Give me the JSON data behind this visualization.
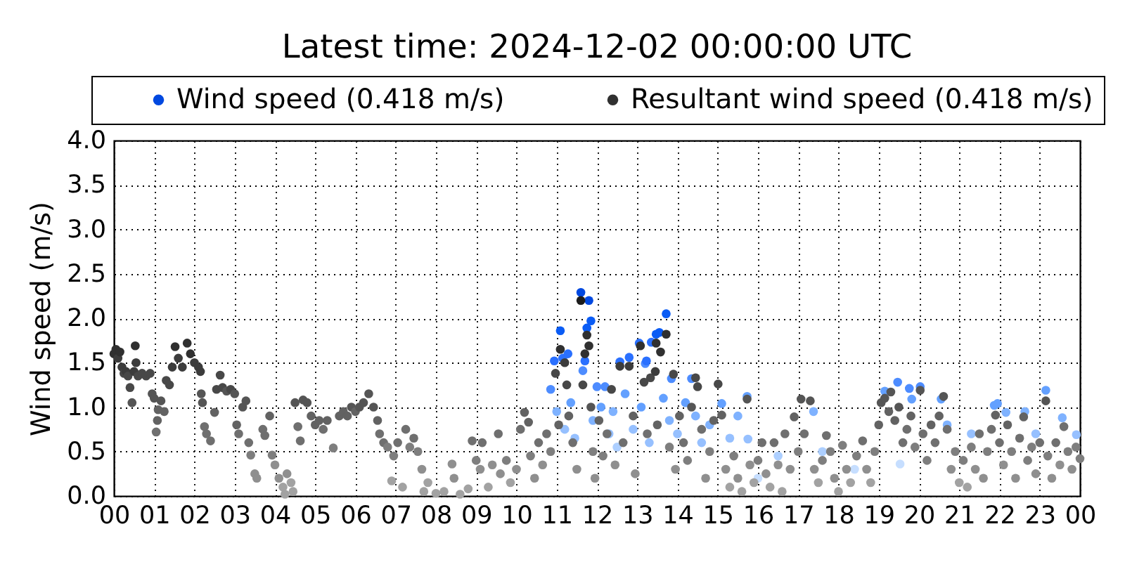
{
  "chart_data": {
    "type": "scatter",
    "title": "Latest time: 2024-12-02 00:00:00 UTC",
    "ylabel": "Wind speed (m/s)",
    "xlim": [
      0,
      24
    ],
    "ylim": [
      0,
      4
    ],
    "xticks": [
      {
        "value": 0,
        "label": "00"
      },
      {
        "value": 1,
        "label": "01"
      },
      {
        "value": 2,
        "label": "02"
      },
      {
        "value": 3,
        "label": "03"
      },
      {
        "value": 4,
        "label": "04"
      },
      {
        "value": 5,
        "label": "05"
      },
      {
        "value": 6,
        "label": "06"
      },
      {
        "value": 7,
        "label": "07"
      },
      {
        "value": 8,
        "label": "08"
      },
      {
        "value": 9,
        "label": "09"
      },
      10,
      11,
      12,
      13,
      14,
      15,
      16,
      17,
      18,
      19,
      20,
      21,
      22,
      23,
      {
        "value": 24,
        "label": "00"
      }
    ],
    "yticks": [
      {
        "value": 0,
        "label": "0.0"
      },
      0.5,
      {
        "value": 1,
        "label": "1.0"
      },
      1.5,
      {
        "value": 2,
        "label": "2.0"
      },
      2.5,
      {
        "value": 3,
        "label": "3.0"
      },
      3.5,
      {
        "value": 4,
        "label": "4.0"
      }
    ],
    "grid": true,
    "legend": "top",
    "marker": "circle",
    "series": [
      {
        "name": "Wind speed (0.418 m/s)",
        "color": "#0048e0",
        "x": [
          10.85,
          10.94,
          11,
          11.09,
          11.15,
          11.2,
          11.28,
          11.35,
          11.45,
          11.6,
          11.65,
          11.7,
          11.75,
          11.8,
          11.85,
          11.9,
          12,
          12.1,
          12.2,
          12.3,
          12.4,
          12.5,
          12.57,
          12.7,
          12.8,
          12.9,
          13.05,
          13.1,
          13.2,
          13.23,
          13.3,
          13.35,
          13.47,
          13.55,
          13.65,
          13.72,
          13.8,
          13.85,
          14,
          14.2,
          14.35,
          14.45,
          14.6,
          14.8,
          15.1,
          15.3,
          15.5,
          15.73,
          15.75,
          16,
          16.5,
          17.38,
          17.6,
          18.4,
          19.15,
          19.47,
          19.53,
          19.76,
          19.82,
          20.03,
          20.55,
          20.7,
          21.3,
          21.87,
          21.95,
          22.16,
          22.63,
          22.9,
          23.15,
          23.56,
          23.91
        ],
        "values": [
          1.2,
          1.52,
          0.95,
          1.86,
          1.55,
          0.75,
          1.6,
          1.05,
          0.65,
          2.29,
          1.41,
          1.52,
          1.89,
          2.2,
          1.97,
          0.85,
          1.23,
          1.0,
          1.23,
          0.7,
          0.95,
          0.55,
          1.51,
          1.15,
          1.56,
          0.75,
          1.72,
          1.0,
          1.49,
          1.52,
          0.6,
          1.73,
          1.82,
          1.84,
          1.1,
          2.05,
          0.85,
          1.32,
          0.7,
          1.05,
          1.32,
          0.9,
          0.6,
          0.8,
          1.04,
          0.65,
          0.9,
          1.12,
          0.64,
          0.2,
          0.45,
          0.95,
          0.5,
          0.3,
          1.18,
          1.28,
          0.36,
          1.21,
          1.09,
          1.23,
          1.09,
          0.8,
          0.7,
          1.02,
          1.04,
          0.94,
          0.95,
          0.7,
          1.19,
          0.88,
          0.69
        ],
        "colors": [
          "#4d8cff",
          "#2a70ff",
          "#7fb2ff",
          "#0a5cf5",
          "#2a70ff",
          "#96c0ff",
          "#2a70ff",
          "#63a0ff",
          "#96c0ff",
          "#0048e0",
          "#4d8cff",
          "#2a70ff",
          "#0a5cf5",
          "#0048e0",
          "#0a5cf5",
          "#7fb2ff",
          "#4d8cff",
          "#63a0ff",
          "#4d8cff",
          "#96c0ff",
          "#7fb2ff",
          "#adcfff",
          "#2a70ff",
          "#63a0ff",
          "#2a70ff",
          "#96c0ff",
          "#2a70ff",
          "#63a0ff",
          "#4d8cff",
          "#2a70ff",
          "#96c0ff",
          "#2a70ff",
          "#0a5cf5",
          "#0a5cf5",
          "#63a0ff",
          "#0a5cf5",
          "#7fb2ff",
          "#4d8cff",
          "#96c0ff",
          "#63a0ff",
          "#4d8cff",
          "#7fb2ff",
          "#96c0ff",
          "#7fb2ff",
          "#63a0ff",
          "#96c0ff",
          "#7fb2ff",
          "#63a0ff",
          "#96c0ff",
          "#c6deff",
          "#adcfff",
          "#7fb2ff",
          "#adcfff",
          "#c6deff",
          "#63a0ff",
          "#4d8cff",
          "#c6deff",
          "#4d8cff",
          "#63a0ff",
          "#4d8cff",
          "#63a0ff",
          "#7fb2ff",
          "#96c0ff",
          "#63a0ff",
          "#63a0ff",
          "#7fb2ff",
          "#7fb2ff",
          "#96c0ff",
          "#63a0ff",
          "#7fb2ff",
          "#96c0ff"
        ]
      },
      {
        "name": "Resultant wind speed (0.418 m/s)",
        "color": "#303030",
        "x": [
          0,
          0.05,
          0.1,
          0.15,
          0.2,
          0.25,
          0.3,
          0.35,
          0.4,
          0.45,
          0.5,
          0.53,
          0.55,
          0.6,
          0.7,
          0.8,
          0.9,
          0.95,
          1,
          1.05,
          1.08,
          1.1,
          1.17,
          1.25,
          1.3,
          1.38,
          1.45,
          1.52,
          1.6,
          1.7,
          1.82,
          1.9,
          2,
          2.1,
          2.15,
          2.17,
          2.2,
          2.25,
          2.3,
          2.4,
          2.5,
          2.55,
          2.64,
          2.7,
          2.8,
          2.9,
          3,
          3.05,
          3.1,
          3.2,
          3.28,
          3.35,
          3.4,
          3.5,
          3.55,
          3.7,
          3.75,
          3.87,
          3.93,
          4,
          4.1,
          4.2,
          4.25,
          4.3,
          4.4,
          4.45,
          4.5,
          4.57,
          4.63,
          4.7,
          4.8,
          4.9,
          5,
          5.1,
          5.2,
          5.3,
          5.45,
          5.6,
          5.7,
          5.8,
          5.9,
          6,
          6.1,
          6.2,
          6.33,
          6.45,
          6.55,
          6.6,
          6.7,
          6.8,
          6.9,
          6.95,
          7.05,
          7.17,
          7.25,
          7.35,
          7.45,
          7.55,
          7.65,
          7.7,
          7.8,
          8,
          8.2,
          8.4,
          8.45,
          8.6,
          8.8,
          8.9,
          9,
          9.1,
          9.15,
          9.3,
          9.4,
          9.55,
          9.6,
          9.75,
          9.85,
          10,
          10.1,
          10.2,
          10.3,
          10.35,
          10.45,
          10.55,
          10.65,
          10.75,
          10.85,
          10.97,
          11.05,
          11.09,
          11.2,
          11.25,
          11.3,
          11.4,
          11.5,
          11.6,
          11.65,
          11.7,
          11.75,
          11.8,
          11.85,
          11.9,
          11.95,
          12.05,
          12.15,
          12.25,
          12.36,
          12.45,
          12.57,
          12.65,
          12.8,
          12.9,
          12.95,
          13.08,
          13.17,
          13.25,
          13.33,
          13.45,
          13.47,
          13.5,
          13.58,
          13.72,
          13.8,
          13.9,
          13.95,
          14.05,
          14.15,
          14.25,
          14.35,
          14.45,
          14.5,
          14.6,
          14.7,
          14.8,
          14.9,
          15.01,
          15.1,
          15.2,
          15.3,
          15.4,
          15.5,
          15.6,
          15.73,
          15.8,
          15.9,
          16,
          16.1,
          16.2,
          16.3,
          16.4,
          16.5,
          16.6,
          16.67,
          16.8,
          16.9,
          17,
          17.07,
          17.15,
          17.3,
          17.4,
          17.5,
          17.6,
          17.7,
          17.8,
          17.9,
          18,
          18.1,
          18.2,
          18.3,
          18.45,
          18.6,
          18.7,
          18.8,
          18.9,
          19,
          19.06,
          19.15,
          19.25,
          19.3,
          19.4,
          19.5,
          19.6,
          19.7,
          19.8,
          19.9,
          20.03,
          20.1,
          20.2,
          20.3,
          20.4,
          20.5,
          20.61,
          20.7,
          20.8,
          20.9,
          21,
          21.1,
          21.2,
          21.3,
          21.4,
          21.5,
          21.6,
          21.7,
          21.8,
          21.9,
          22,
          22.1,
          22.2,
          22.3,
          22.4,
          22.5,
          22.6,
          22.7,
          22.8,
          22.9,
          23,
          23.15,
          23.2,
          23.3,
          23.4,
          23.5,
          23.6,
          23.7,
          23.8,
          23.9,
          24
        ],
        "values": [
          1.6,
          1.65,
          1.55,
          1.62,
          1.45,
          1.38,
          1.4,
          1.35,
          1.22,
          1.05,
          1.4,
          1.69,
          1.5,
          1.35,
          1.38,
          1.35,
          1.38,
          1.15,
          1.1,
          0.72,
          0.85,
          0.97,
          1.07,
          0.95,
          1.3,
          1.25,
          1.45,
          1.68,
          1.55,
          1.45,
          1.72,
          1.6,
          1.5,
          1.45,
          1.4,
          1.15,
          1.05,
          0.78,
          0.7,
          0.62,
          0.94,
          1.2,
          1.36,
          1.22,
          1.18,
          1.2,
          1.15,
          0.8,
          0.7,
          1.0,
          1.07,
          0.6,
          0.46,
          0.25,
          0.2,
          0.75,
          0.68,
          0.9,
          0.46,
          0.35,
          0.2,
          0.1,
          0.02,
          0.25,
          0.15,
          0.05,
          1.05,
          0.78,
          0.62,
          1.08,
          1.05,
          0.9,
          0.8,
          0.85,
          0.75,
          0.85,
          0.54,
          0.9,
          0.95,
          0.9,
          1.0,
          0.95,
          1.0,
          1.05,
          1.15,
          1.0,
          0.85,
          0.7,
          0.6,
          0.55,
          0.17,
          0.45,
          0.6,
          0.1,
          0.75,
          0.55,
          0.65,
          0.5,
          0.3,
          0.05,
          0.15,
          0.03,
          0.05,
          0.36,
          0.2,
          0.02,
          0.08,
          0.62,
          0.4,
          0.3,
          0.6,
          0.1,
          0.35,
          0.7,
          0.25,
          0.4,
          0.15,
          0.3,
          0.75,
          0.94,
          0.83,
          0.45,
          0.2,
          0.6,
          0.35,
          0.7,
          0.5,
          1.38,
          0.8,
          1.65,
          1.5,
          1.25,
          0.9,
          0.6,
          0.3,
          2.2,
          1.25,
          1.6,
          1.81,
          1.69,
          1.0,
          0.5,
          0.2,
          0.85,
          0.45,
          0.7,
          1.2,
          0.35,
          1.46,
          0.6,
          1.46,
          0.9,
          0.25,
          1.69,
          1.28,
          0.7,
          1.33,
          1.4,
          1.72,
          0.8,
          1.62,
          1.82,
          0.55,
          1.37,
          0.3,
          0.9,
          0.6,
          0.4,
          1.0,
          1.33,
          1.23,
          0.75,
          0.2,
          0.5,
          0.85,
          1.26,
          0.91,
          0.3,
          0.1,
          0.45,
          0.2,
          0.05,
          1.09,
          0.35,
          0.15,
          0.4,
          0.6,
          0.25,
          0.1,
          0.6,
          0.35,
          0.05,
          0.7,
          0.3,
          0.89,
          0.5,
          1.09,
          0.7,
          1.07,
          0.3,
          0.15,
          0.4,
          0.68,
          0.5,
          0.2,
          0.05,
          0.57,
          0.3,
          0.15,
          0.45,
          0.62,
          0.3,
          0.15,
          0.5,
          0.8,
          1.05,
          1.1,
          0.95,
          1.17,
          0.85,
          1.0,
          0.6,
          0.75,
          0.9,
          0.55,
          1.19,
          0.7,
          0.4,
          0.8,
          0.6,
          0.9,
          1.12,
          0.75,
          0.3,
          0.5,
          0.15,
          0.4,
          0.1,
          0.55,
          0.3,
          0.7,
          0.2,
          0.5,
          0.75,
          0.91,
          0.6,
          0.35,
          0.8,
          0.5,
          0.2,
          0.65,
          0.89,
          0.4,
          0.55,
          0.25,
          0.6,
          1.07,
          0.45,
          0.2,
          0.6,
          0.35,
          0.78,
          0.5,
          0.3,
          0.55,
          0.42
        ],
        "colors": [
          "#303030",
          "#303030",
          "#3c3c3c",
          "#303030",
          "#3c3c3c",
          "#484848",
          "#3c3c3c",
          "#484848",
          "#484848",
          "#555555",
          "#3c3c3c",
          "#303030",
          "#3c3c3c",
          "#484848",
          "#484848",
          "#484848",
          "#484848",
          "#555555",
          "#555555",
          "#6f6f6f",
          "#626262",
          "#626262",
          "#555555",
          "#626262",
          "#484848",
          "#484848",
          "#3c3c3c",
          "#303030",
          "#3c3c3c",
          "#3c3c3c",
          "#303030",
          "#303030",
          "#3c3c3c",
          "#3c3c3c",
          "#3c3c3c",
          "#555555",
          "#555555",
          "#6f6f6f",
          "#6f6f6f",
          "#6f6f6f",
          "#626262",
          "#484848",
          "#484848",
          "#484848",
          "#555555",
          "#484848",
          "#555555",
          "#626262",
          "#6f6f6f",
          "#555555",
          "#555555",
          "#6f6f6f",
          "#7e7e7e",
          "#8f8f8f",
          "#8f8f8f",
          "#6f6f6f",
          "#6f6f6f",
          "#626262",
          "#7e7e7e",
          "#8f8f8f",
          "#8f8f8f",
          "#a2a2a2",
          "#a2a2a2",
          "#8f8f8f",
          "#a2a2a2",
          "#a2a2a2",
          "#555555",
          "#6f6f6f",
          "#6f6f6f",
          "#555555",
          "#555555",
          "#626262",
          "#626262",
          "#626262",
          "#6f6f6f",
          "#626262",
          "#7e7e7e",
          "#626262",
          "#626262",
          "#626262",
          "#555555",
          "#626262",
          "#555555",
          "#555555",
          "#555555",
          "#555555",
          "#626262",
          "#6f6f6f",
          "#6f6f6f",
          "#7e7e7e",
          "#a2a2a2",
          "#7e7e7e",
          "#6f6f6f",
          "#a2a2a2",
          "#6f6f6f",
          "#7e7e7e",
          "#6f6f6f",
          "#7e7e7e",
          "#8f8f8f",
          "#a2a2a2",
          "#a2a2a2",
          "#a2a2a2",
          "#a2a2a2",
          "#8f8f8f",
          "#8f8f8f",
          "#a2a2a2",
          "#a2a2a2",
          "#6f6f6f",
          "#7e7e7e",
          "#8f8f8f",
          "#6f6f6f",
          "#a2a2a2",
          "#8f8f8f",
          "#6f6f6f",
          "#8f8f8f",
          "#7e7e7e",
          "#a2a2a2",
          "#8f8f8f",
          "#6f6f6f",
          "#626262",
          "#626262",
          "#7e7e7e",
          "#8f8f8f",
          "#6f6f6f",
          "#8f8f8f",
          "#6f6f6f",
          "#7e7e7e",
          "#484848",
          "#626262",
          "#303030",
          "#3c3c3c",
          "#484848",
          "#626262",
          "#6f6f6f",
          "#8f8f8f",
          "#1c1c1c",
          "#484848",
          "#303030",
          "#303030",
          "#303030",
          "#555555",
          "#7e7e7e",
          "#8f8f8f",
          "#626262",
          "#7e7e7e",
          "#6f6f6f",
          "#484848",
          "#8f8f8f",
          "#3c3c3c",
          "#6f6f6f",
          "#3c3c3c",
          "#626262",
          "#8f8f8f",
          "#303030",
          "#484848",
          "#6f6f6f",
          "#484848",
          "#3c3c3c",
          "#303030",
          "#626262",
          "#303030",
          "#303030",
          "#7e7e7e",
          "#484848",
          "#8f8f8f",
          "#626262",
          "#6f6f6f",
          "#7e7e7e",
          "#555555",
          "#484848",
          "#484848",
          "#6f6f6f",
          "#8f8f8f",
          "#7e7e7e",
          "#626262",
          "#484848",
          "#626262",
          "#8f8f8f",
          "#a2a2a2",
          "#7e7e7e",
          "#8f8f8f",
          "#a2a2a2",
          "#555555",
          "#8f8f8f",
          "#a2a2a2",
          "#7e7e7e",
          "#6f6f6f",
          "#8f8f8f",
          "#a2a2a2",
          "#6f6f6f",
          "#8f8f8f",
          "#a2a2a2",
          "#6f6f6f",
          "#8f8f8f",
          "#626262",
          "#7e7e7e",
          "#555555",
          "#6f6f6f",
          "#555555",
          "#8f8f8f",
          "#a2a2a2",
          "#7e7e7e",
          "#6f6f6f",
          "#7e7e7e",
          "#8f8f8f",
          "#a2a2a2",
          "#7e7e7e",
          "#8f8f8f",
          "#a2a2a2",
          "#7e7e7e",
          "#6f6f6f",
          "#8f8f8f",
          "#a2a2a2",
          "#7e7e7e",
          "#626262",
          "#555555",
          "#555555",
          "#626262",
          "#555555",
          "#626262",
          "#555555",
          "#6f6f6f",
          "#6f6f6f",
          "#626262",
          "#7e7e7e",
          "#555555",
          "#6f6f6f",
          "#7e7e7e",
          "#626262",
          "#6f6f6f",
          "#626262",
          "#555555",
          "#6f6f6f",
          "#8f8f8f",
          "#7e7e7e",
          "#a2a2a2",
          "#7e7e7e",
          "#a2a2a2",
          "#7e7e7e",
          "#8f8f8f",
          "#6f6f6f",
          "#8f8f8f",
          "#7e7e7e",
          "#6f6f6f",
          "#626262",
          "#6f6f6f",
          "#8f8f8f",
          "#626262",
          "#7e7e7e",
          "#8f8f8f",
          "#6f6f6f",
          "#626262",
          "#7e7e7e",
          "#7e7e7e",
          "#8f8f8f",
          "#6f6f6f",
          "#555555",
          "#7e7e7e",
          "#8f8f8f",
          "#6f6f6f",
          "#8f8f8f",
          "#6f6f6f",
          "#7e7e7e",
          "#8f8f8f",
          "#7e7e7e",
          "#7e7e7e"
        ]
      }
    ]
  }
}
